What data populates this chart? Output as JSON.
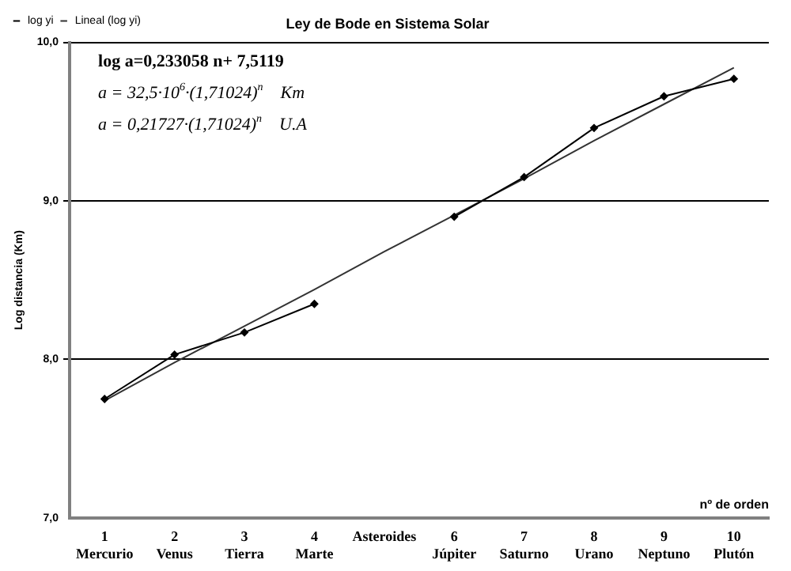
{
  "chart_data": {
    "type": "line",
    "title": "Ley de Bode en Sistema Solar",
    "ylabel": "Log distancia (Km)",
    "xlabel": "nº de orden",
    "categories": [
      "1\nMercurio",
      "2\nVenus",
      "3\nTierra",
      "4\nMarte",
      "Asteroides",
      "6\nJúpiter",
      "7\nSaturno",
      "8\nUrano",
      "9\nNeptuno",
      "10\nPlutón"
    ],
    "series": [
      {
        "name": "log yi",
        "color": "#000000",
        "marker": "diamond",
        "values": [
          7.75,
          8.03,
          8.17,
          8.35,
          null,
          8.9,
          9.15,
          9.46,
          9.66,
          9.77
        ]
      },
      {
        "name": "Lineal (log yi)",
        "color": "#333333",
        "marker": "none",
        "values": [
          7.74,
          7.98,
          8.21,
          8.44,
          8.68,
          8.91,
          9.14,
          9.38,
          9.61,
          9.84
        ]
      }
    ],
    "ylim": [
      7,
      10
    ],
    "yticks": [
      {
        "value": 7,
        "label": "7,0"
      },
      {
        "value": 8,
        "label": "8,0"
      },
      {
        "value": 9,
        "label": "9,0"
      },
      {
        "value": 10,
        "label": "10,0"
      }
    ],
    "grid": "y",
    "legend": "top left",
    "line_style": "solid",
    "annotations": [
      "log a=0,233058 n+ 7,5119",
      "a = 32,5·10$^{6}$·(1,71024)$^{n}$    Km",
      "a = 0,21727·(1,71024)$^{n}$    U.A"
    ]
  }
}
